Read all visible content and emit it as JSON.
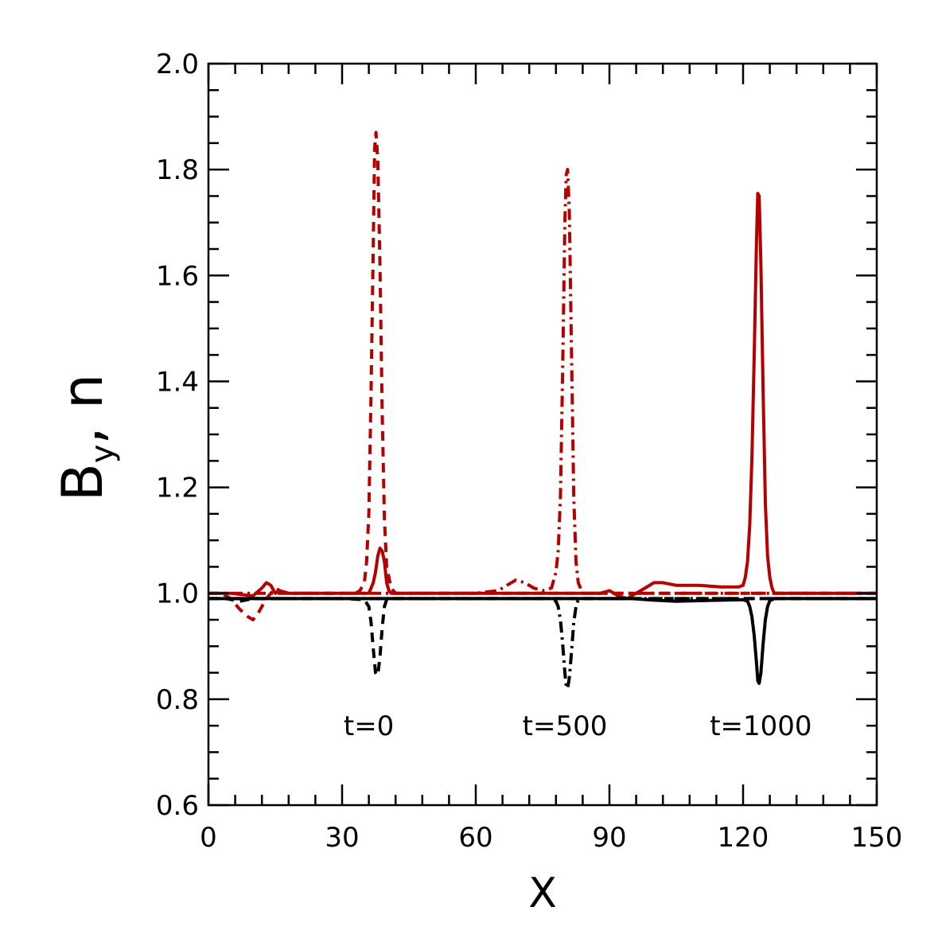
{
  "chart_data": {
    "type": "line",
    "xlabel": "X",
    "ylabel": {
      "main": "B",
      "sub": "y",
      "rest": ", n"
    },
    "xlim": [
      0,
      150
    ],
    "ylim": [
      0.6,
      2.0
    ],
    "xticks": [
      0,
      30,
      60,
      90,
      120,
      150
    ],
    "yticks": [
      0.6,
      0.8,
      1.0,
      1.2,
      1.4,
      1.6,
      1.8,
      2.0
    ],
    "xtick_labels": [
      "0",
      "30",
      "60",
      "90",
      "120",
      "150"
    ],
    "ytick_labels": [
      "0.6",
      "0.8",
      "1.0",
      "1.2",
      "1.4",
      "1.6",
      "1.8",
      "2.0"
    ],
    "grid": false,
    "colors": {
      "red": "#b50000",
      "black": "#000000"
    },
    "annotations": [
      {
        "text": "t=0",
        "x": 36,
        "y": 0.75
      },
      {
        "text": "t=500",
        "x": 80,
        "y": 0.75
      },
      {
        "text": "t=1000",
        "x": 124,
        "y": 0.75
      }
    ],
    "series": [
      {
        "color": "#b50000",
        "dash": "dashed",
        "x": [
          0,
          3,
          5,
          7,
          9,
          10,
          11,
          13,
          15,
          17,
          20,
          25,
          30,
          33,
          34,
          35,
          35.5,
          36,
          36.5,
          37,
          37.3,
          37.6,
          38,
          38.5,
          39,
          39.5,
          40,
          41,
          42,
          45,
          60,
          90,
          120,
          150
        ],
        "y": [
          1.0,
          1.0,
          0.99,
          0.97,
          0.955,
          0.95,
          0.96,
          0.99,
          1.01,
          1.0,
          1.0,
          1.0,
          1.0,
          1.0,
          1.005,
          1.02,
          1.06,
          1.15,
          1.38,
          1.66,
          1.84,
          1.87,
          1.82,
          1.62,
          1.34,
          1.14,
          1.05,
          1.01,
          1.0,
          1.0,
          1.0,
          1.0,
          1.0,
          1.0
        ]
      },
      {
        "color": "#b50000",
        "dash": "dashdot",
        "x": [
          0,
          60,
          65,
          67,
          69,
          71,
          73,
          75,
          77,
          78,
          78.5,
          79,
          79.5,
          80,
          80.3,
          80.6,
          81,
          81.5,
          82,
          82.5,
          83,
          84,
          86,
          90,
          120,
          150
        ],
        "y": [
          1.0,
          1.0,
          1.005,
          1.015,
          1.025,
          1.02,
          1.01,
          1.005,
          1.01,
          1.04,
          1.08,
          1.18,
          1.42,
          1.7,
          1.79,
          1.8,
          1.72,
          1.45,
          1.18,
          1.06,
          1.02,
          1.0,
          1.0,
          1.0,
          1.0,
          1.0
        ]
      },
      {
        "color": "#b50000",
        "dash": "solid",
        "x": [
          0,
          5,
          10,
          12,
          13,
          14,
          15,
          16,
          18,
          20,
          30,
          35,
          36,
          36.5,
          37,
          37.5,
          38,
          38.5,
          39,
          39.5,
          40,
          40.5,
          41,
          42,
          45,
          60,
          88,
          90,
          92,
          94,
          96,
          98,
          100,
          102,
          105,
          110,
          115,
          118,
          119,
          120,
          120.5,
          121,
          121.5,
          122,
          122.5,
          123,
          123.3,
          123.6,
          124,
          124.5,
          125,
          125.5,
          126,
          126.5,
          127,
          128,
          130,
          135,
          150
        ],
        "y": [
          1.0,
          1.0,
          0.995,
          1.01,
          1.02,
          1.015,
          1.0,
          1.005,
          1.0,
          1.0,
          1.0,
          1.0,
          1.0,
          1.01,
          1.02,
          1.04,
          1.07,
          1.085,
          1.08,
          1.06,
          1.02,
          1.005,
          1.0,
          1.0,
          1.0,
          1.0,
          1.0,
          1.005,
          0.995,
          0.99,
          1.0,
          1.01,
          1.02,
          1.02,
          1.015,
          1.015,
          1.012,
          1.012,
          1.012,
          1.015,
          1.03,
          1.06,
          1.13,
          1.26,
          1.45,
          1.66,
          1.755,
          1.75,
          1.62,
          1.38,
          1.17,
          1.07,
          1.03,
          1.01,
          1.0,
          1.0,
          1.0,
          1.0,
          1.0
        ]
      },
      {
        "color": "#000000",
        "dash": "dashed",
        "x": [
          0,
          4,
          7,
          10,
          15,
          30,
          35,
          36,
          36.5,
          37,
          37.5,
          38,
          38.5,
          39,
          39.5,
          40,
          41,
          45,
          150
        ],
        "y": [
          0.99,
          0.99,
          0.985,
          0.99,
          0.99,
          0.99,
          0.988,
          0.975,
          0.945,
          0.895,
          0.85,
          0.845,
          0.88,
          0.935,
          0.975,
          0.988,
          0.99,
          0.99,
          0.99
        ]
      },
      {
        "color": "#000000",
        "dash": "dashdot",
        "x": [
          0,
          70,
          77,
          78,
          78.5,
          79,
          79.5,
          80,
          80.3,
          80.6,
          81,
          81.5,
          82,
          82.5,
          83,
          84,
          150
        ],
        "y": [
          0.99,
          0.99,
          0.99,
          0.985,
          0.975,
          0.95,
          0.905,
          0.85,
          0.825,
          0.82,
          0.84,
          0.89,
          0.945,
          0.975,
          0.988,
          0.99,
          0.99
        ]
      },
      {
        "color": "#000000",
        "dash": "solid",
        "x": [
          0,
          90,
          95,
          100,
          105,
          110,
          115,
          120,
          121,
          121.5,
          122,
          122.5,
          123,
          123.3,
          123.6,
          124,
          124.5,
          125,
          125.5,
          126,
          127,
          128,
          150
        ],
        "y": [
          0.99,
          0.99,
          0.99,
          0.987,
          0.985,
          0.986,
          0.987,
          0.988,
          0.985,
          0.975,
          0.955,
          0.92,
          0.87,
          0.835,
          0.83,
          0.85,
          0.905,
          0.95,
          0.975,
          0.986,
          0.99,
          0.99,
          0.99
        ]
      }
    ]
  }
}
